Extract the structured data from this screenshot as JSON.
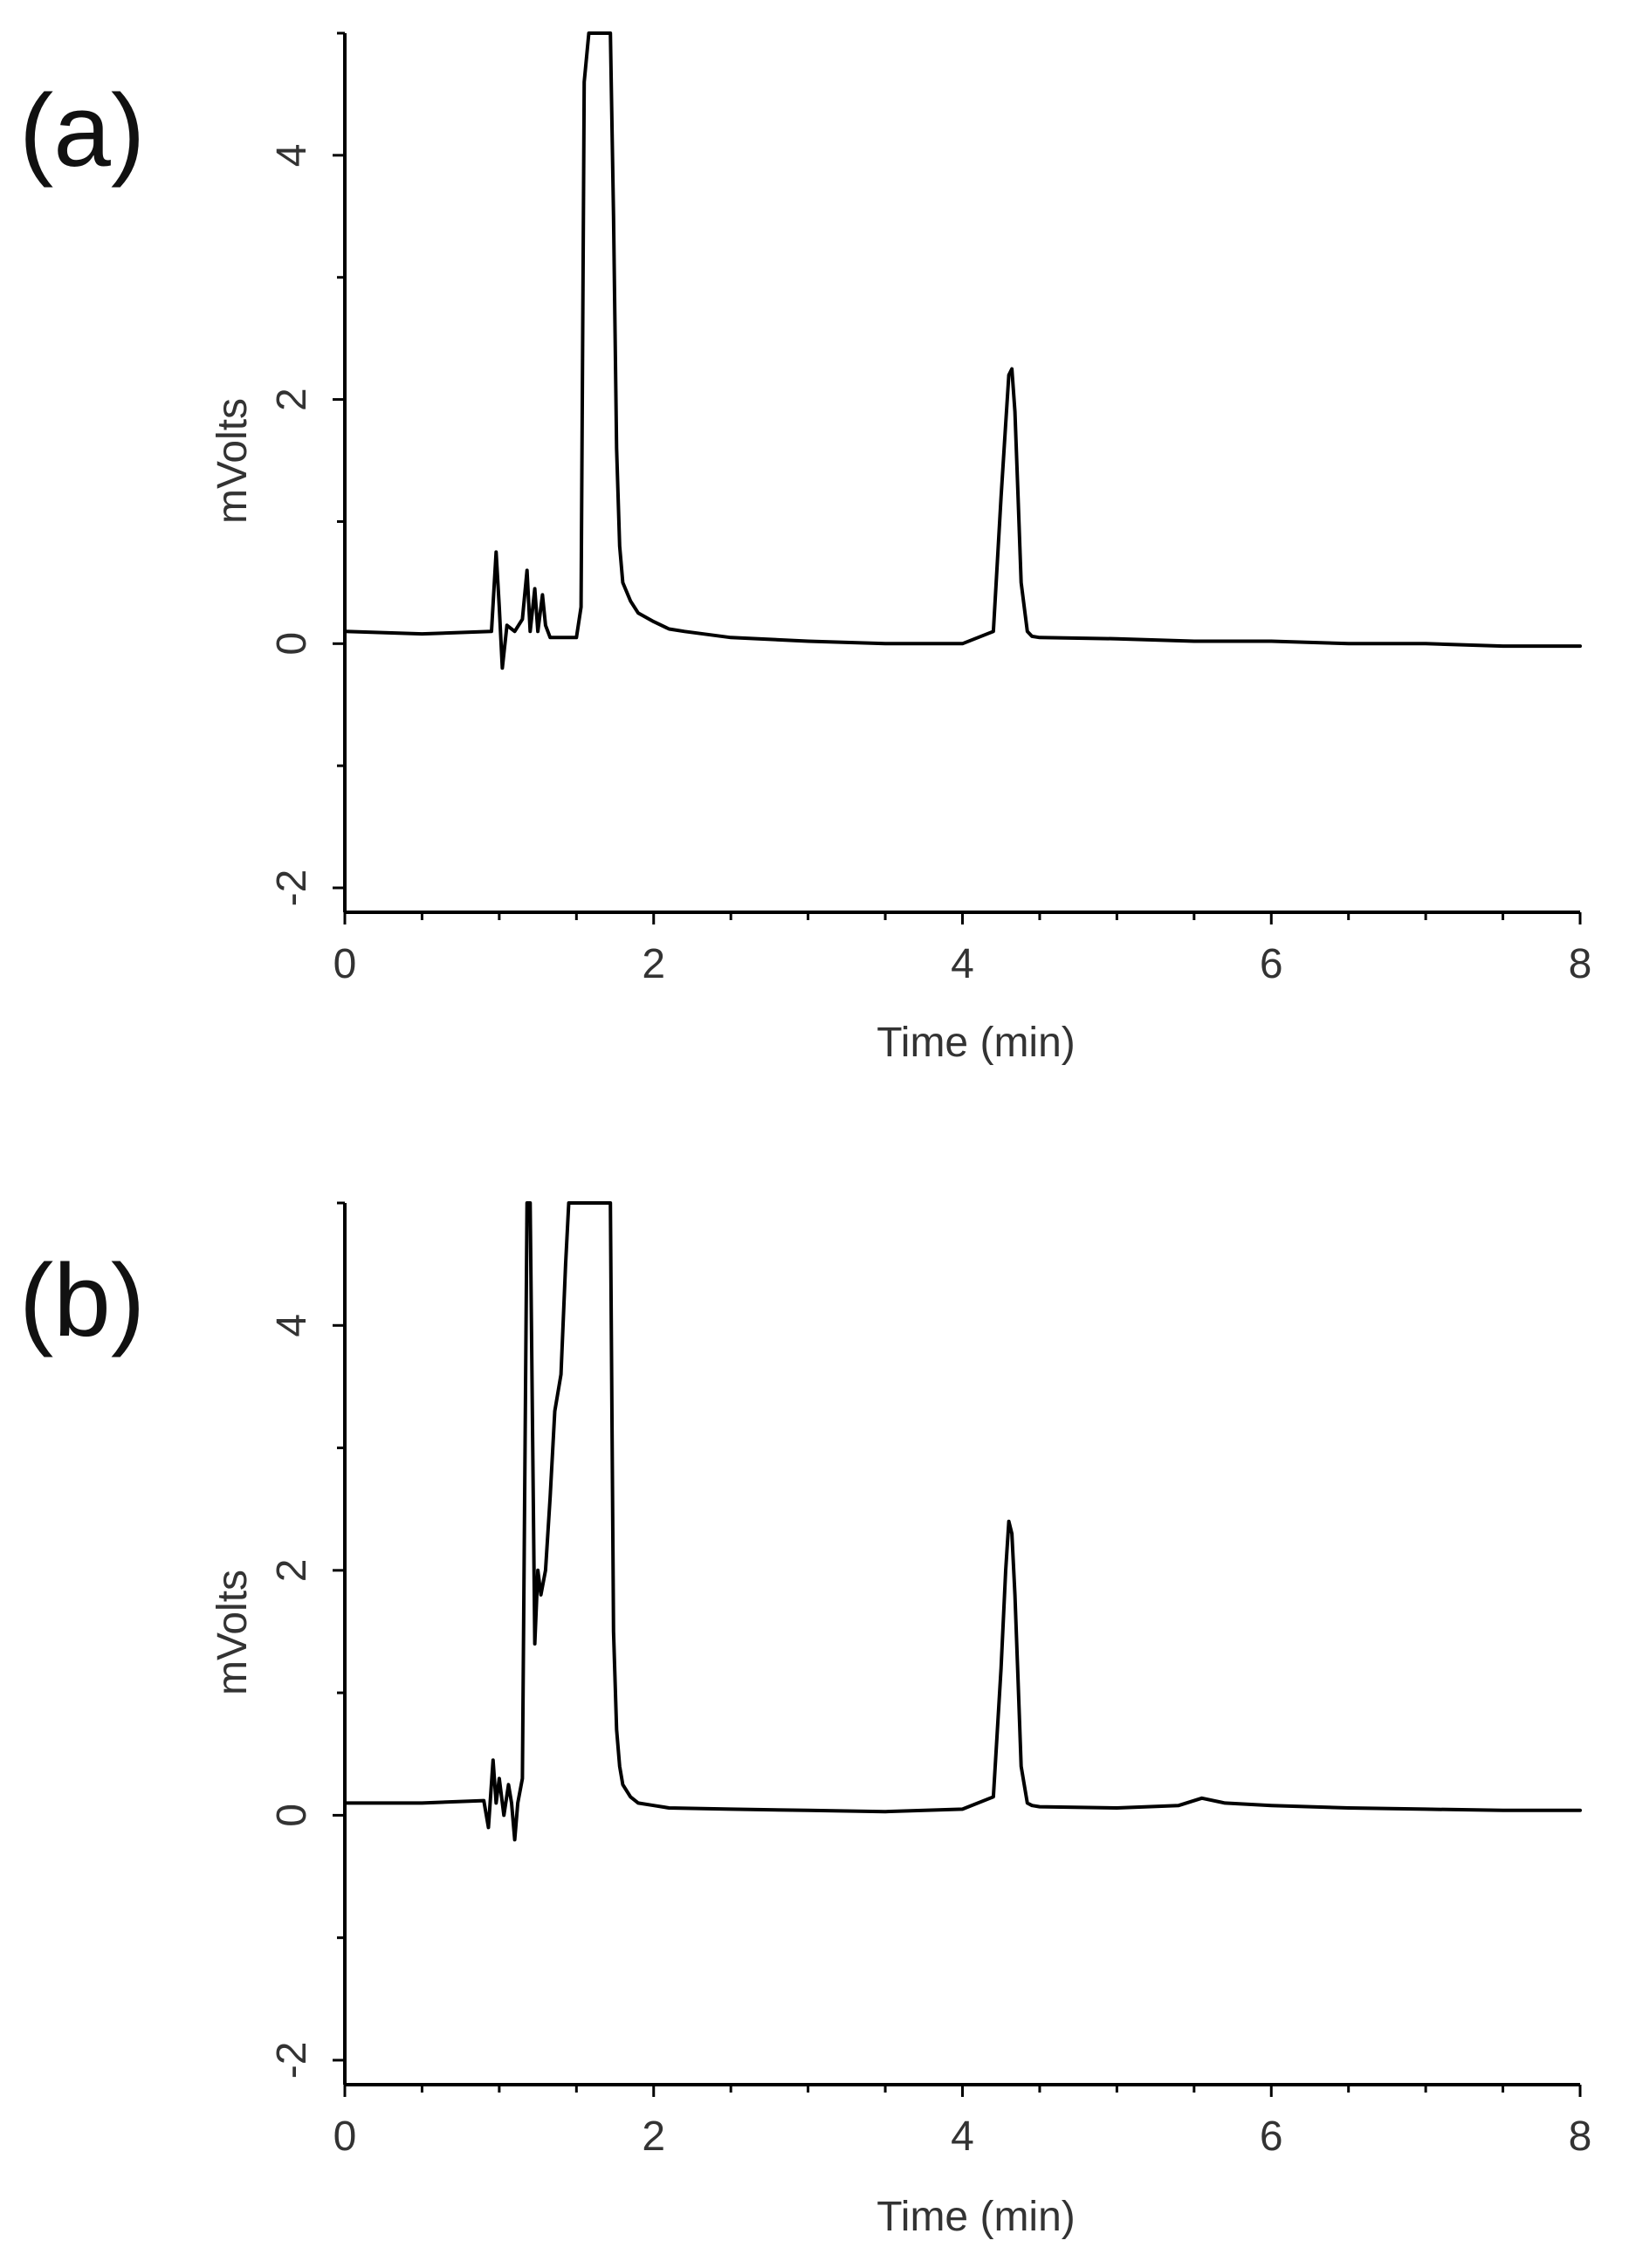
{
  "chart_data": [
    {
      "type": "line",
      "panel_label": "(a)",
      "xlabel": "Time (min)",
      "ylabel": "mVolts",
      "xlim": [
        0,
        8
      ],
      "ylim": [
        -2.2,
        5
      ],
      "x_ticks": [
        0,
        2,
        4,
        6,
        8
      ],
      "x_tick_labels": [
        "0",
        "2",
        "4",
        "6",
        "8"
      ],
      "y_ticks": [
        -2,
        0,
        2,
        4
      ],
      "y_tick_labels": [
        "-2",
        "0",
        "2",
        "4"
      ],
      "grid": false,
      "series": [
        {
          "x": [
            0,
            0.5,
            0.95,
            0.98,
            1.0,
            1.02,
            1.05,
            1.1,
            1.15,
            1.18,
            1.2,
            1.23,
            1.25,
            1.28,
            1.3,
            1.33,
            1.4,
            1.5,
            1.53,
            1.55,
            1.58,
            1.6,
            1.72,
            1.74,
            1.76,
            1.78,
            1.8,
            1.85,
            1.9,
            2.0,
            2.1,
            2.2,
            2.5,
            3.0,
            3.5,
            4.0,
            4.2,
            4.25,
            4.28,
            4.3,
            4.32,
            4.34,
            4.36,
            4.38,
            4.42,
            4.45,
            4.5,
            5.0,
            5.5,
            6.0,
            6.5,
            7.0,
            7.5,
            8.0
          ],
          "y": [
            0.1,
            0.08,
            0.1,
            0.75,
            0.3,
            -0.2,
            0.15,
            0.1,
            0.2,
            0.6,
            0.1,
            0.45,
            0.1,
            0.4,
            0.15,
            0.05,
            0.05,
            0.05,
            0.3,
            4.6,
            5.0,
            5.0,
            5.0,
            3.5,
            1.6,
            0.8,
            0.5,
            0.35,
            0.25,
            0.18,
            0.12,
            0.1,
            0.05,
            0.02,
            0.0,
            0.0,
            0.1,
            1.2,
            1.8,
            2.2,
            2.25,
            1.9,
            1.2,
            0.5,
            0.1,
            0.06,
            0.05,
            0.04,
            0.02,
            0.02,
            0.0,
            0.0,
            -0.02,
            -0.02
          ]
        }
      ]
    },
    {
      "type": "line",
      "panel_label": "(b)",
      "xlabel": "Time (min)",
      "ylabel": "mVolts",
      "xlim": [
        0,
        8
      ],
      "ylim": [
        -2.2,
        5
      ],
      "x_ticks": [
        0,
        2,
        4,
        6,
        8
      ],
      "x_tick_labels": [
        "0",
        "2",
        "4",
        "6",
        "8"
      ],
      "y_ticks": [
        -2,
        0,
        2,
        4
      ],
      "y_tick_labels": [
        "-2",
        "0",
        "2",
        "4"
      ],
      "grid": false,
      "series": [
        {
          "x": [
            0,
            0.5,
            0.9,
            0.93,
            0.96,
            0.98,
            1.0,
            1.03,
            1.06,
            1.08,
            1.1,
            1.12,
            1.15,
            1.18,
            1.2,
            1.23,
            1.25,
            1.27,
            1.3,
            1.33,
            1.36,
            1.4,
            1.43,
            1.45,
            1.5,
            1.6,
            1.72,
            1.74,
            1.76,
            1.78,
            1.8,
            1.85,
            1.9,
            2.0,
            2.1,
            2.5,
            3.0,
            3.5,
            4.0,
            4.2,
            4.25,
            4.28,
            4.3,
            4.32,
            4.34,
            4.36,
            4.38,
            4.42,
            4.45,
            4.5,
            5.0,
            5.4,
            5.55,
            5.7,
            6.0,
            6.5,
            7.0,
            7.5,
            8.0
          ],
          "y": [
            0.1,
            0.1,
            0.12,
            -0.1,
            0.45,
            0.1,
            0.3,
            0.0,
            0.25,
            0.1,
            -0.2,
            0.1,
            0.3,
            5.0,
            5.0,
            1.4,
            2.0,
            1.8,
            2.0,
            2.6,
            3.3,
            3.6,
            4.5,
            5.0,
            5.0,
            5.0,
            5.0,
            1.5,
            0.7,
            0.4,
            0.25,
            0.15,
            0.1,
            0.08,
            0.06,
            0.05,
            0.04,
            0.03,
            0.05,
            0.15,
            1.2,
            2.0,
            2.4,
            2.3,
            1.8,
            1.1,
            0.4,
            0.1,
            0.08,
            0.07,
            0.06,
            0.08,
            0.14,
            0.1,
            0.08,
            0.06,
            0.05,
            0.04,
            0.04
          ]
        }
      ]
    }
  ]
}
